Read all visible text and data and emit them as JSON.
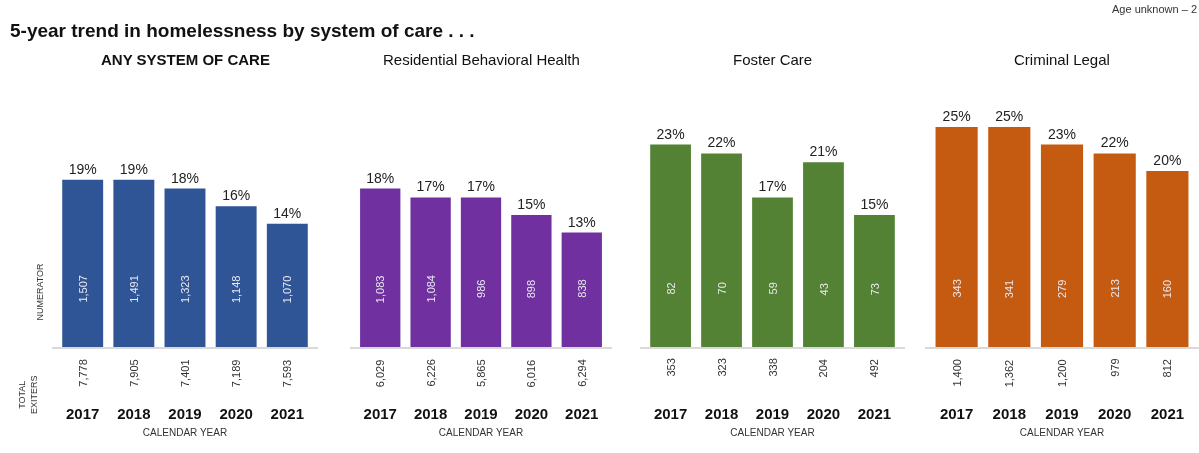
{
  "chart_data": [
    {
      "type": "bar",
      "title": "ANY SYSTEM OF CARE",
      "xlabel": "CALENDAR YEAR",
      "categories": [
        "2017",
        "2018",
        "2019",
        "2020",
        "2021"
      ],
      "tick_labels": "x",
      "series": [
        {
          "color": "#2f5597",
          "values": [
            19,
            19,
            18,
            16,
            14
          ],
          "value_labels": [
            "19%",
            "19%",
            "18%",
            "16%",
            "14%"
          ]
        }
      ],
      "annotations": [
        "5-year trend in homelessness by system of care . . .",
        "NUMERATOR",
        "TOTAL EXITERS",
        "Age unknown – 2",
        "1,507",
        "1,491",
        "1,323",
        "1,148",
        "1,070",
        "7,778",
        "7,905",
        "7,401",
        "7,189",
        "7,593"
      ]
    },
    {
      "type": "bar",
      "title": "Residential Behavioral Health",
      "xlabel": "CALENDAR YEAR",
      "categories": [
        "2017",
        "2018",
        "2019",
        "2020",
        "2021"
      ],
      "tick_labels": "x",
      "series": [
        {
          "color": "#7030a0",
          "values": [
            18,
            17,
            17,
            15,
            13
          ],
          "value_labels": [
            "18%",
            "17%",
            "17%",
            "15%",
            "13%"
          ]
        }
      ],
      "annotations": [
        "1,083",
        "1,084",
        "986",
        "898",
        "838",
        "6,029",
        "6,226",
        "5,865",
        "6,016",
        "6,294"
      ]
    },
    {
      "type": "bar",
      "title": "Foster Care",
      "xlabel": "CALENDAR YEAR",
      "categories": [
        "2017",
        "2018",
        "2019",
        "2020",
        "2021"
      ],
      "tick_labels": "x",
      "series": [
        {
          "color": "#548235",
          "values": [
            23,
            22,
            17,
            21,
            15
          ],
          "value_labels": [
            "23%",
            "22%",
            "17%",
            "21%",
            "15%"
          ]
        }
      ],
      "annotations": [
        "82",
        "70",
        "59",
        "43",
        "73",
        "353",
        "323",
        "338",
        "204",
        "492"
      ]
    },
    {
      "type": "bar",
      "title": "Criminal Legal",
      "xlabel": "CALENDAR YEAR",
      "categories": [
        "2017",
        "2018",
        "2019",
        "2020",
        "2021"
      ],
      "tick_labels": "x",
      "series": [
        {
          "color": "#c55a11",
          "values": [
            25,
            25,
            23,
            22,
            20
          ],
          "value_labels": [
            "25%",
            "25%",
            "23%",
            "22%",
            "20%"
          ]
        }
      ],
      "annotations": [
        "343",
        "341",
        "279",
        "213",
        "160",
        "1,400",
        "1,362",
        "1,200",
        "979",
        "812"
      ]
    }
  ]
}
